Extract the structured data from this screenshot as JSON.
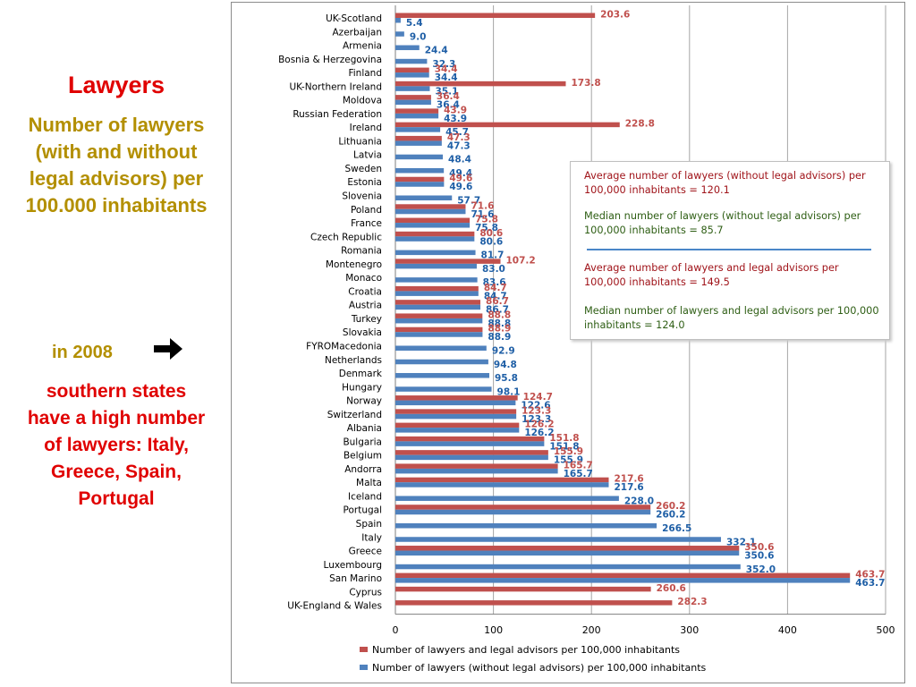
{
  "left_panel": {
    "title": "Lawyers",
    "subtitle": "Number of lawyers (with and without legal advisors) per 100.000 inhabitants",
    "year_text": "in 2008",
    "arrow_icon": "right-arrow",
    "conclusion": "southern states have a high number of lawyers: Italy, Greece, Spain, Portugal"
  },
  "notes": {
    "avg_without": "Average number of lawyers (without legal advisors) per 100,000  inhabitants = 120.1",
    "median_without": "Median number of lawyers (without legal advisors) per 100,000  inhabitants = 85.7",
    "avg_with": "Average number of lawyers and legal advisors per 100,000  inhabitants = 149.5",
    "median_with": "Median number of lawyers and legal advisors per 100,000  inhabitants = 124.0"
  },
  "colors": {
    "red": "#c0504d",
    "blue": "#4f81bd",
    "grid": "#a6a6a6",
    "red_label": "#c0504d",
    "blue_label": "#1f5fa6"
  },
  "chart_data": {
    "type": "bar",
    "orientation": "horizontal",
    "xlim": [
      0,
      500
    ],
    "xticks": [
      "0",
      "100",
      "200",
      "300",
      "400",
      "500"
    ],
    "grid": true,
    "legend_position": "bottom",
    "series": [
      {
        "name": "Number of lawyers and  legal advisors per 100,000 inhabitants",
        "color": "#c0504d"
      },
      {
        "name": "Number of lawyers (without  legal advisors)  per 100,000 inhabitants",
        "color": "#4f81bd"
      }
    ],
    "categories": [
      {
        "label": "UK-Scotland",
        "red": 203.6,
        "blue": 5.4
      },
      {
        "label": "Azerbaijan",
        "red": null,
        "blue": 9.0
      },
      {
        "label": "Armenia",
        "red": null,
        "blue": 24.4
      },
      {
        "label": "Bosnia & Herzegovina",
        "red": null,
        "blue": 32.3
      },
      {
        "label": "Finland",
        "red": 34.4,
        "blue": 34.4
      },
      {
        "label": "UK-Northern Ireland",
        "red": 173.8,
        "blue": 35.1
      },
      {
        "label": "Moldova",
        "red": 36.4,
        "blue": 36.4
      },
      {
        "label": "Russian Federation",
        "red": 43.9,
        "blue": 43.9
      },
      {
        "label": "Ireland",
        "red": 228.8,
        "blue": 45.7
      },
      {
        "label": "Lithuania",
        "red": 47.3,
        "blue": 47.3
      },
      {
        "label": "Latvia",
        "red": null,
        "blue": 48.4
      },
      {
        "label": "Sweden",
        "red": null,
        "blue": 49.4
      },
      {
        "label": "Estonia",
        "red": 49.6,
        "blue": 49.6
      },
      {
        "label": "Slovenia",
        "red": null,
        "blue": 57.7
      },
      {
        "label": "Poland",
        "red": 71.6,
        "blue": 71.6
      },
      {
        "label": "France",
        "red": 75.8,
        "blue": 75.8
      },
      {
        "label": "Czech Republic",
        "red": 80.6,
        "blue": 80.6
      },
      {
        "label": "Romania",
        "red": null,
        "blue": 81.7
      },
      {
        "label": "Montenegro",
        "red": 107.2,
        "blue": 83.0
      },
      {
        "label": "Monaco",
        "red": null,
        "blue": 83.6
      },
      {
        "label": "Croatia",
        "red": 84.7,
        "blue": 84.7
      },
      {
        "label": "Austria",
        "red": 86.7,
        "blue": 86.7
      },
      {
        "label": "Turkey",
        "red": 88.8,
        "blue": 88.8
      },
      {
        "label": "Slovakia",
        "red": 88.9,
        "blue": 88.9
      },
      {
        "label": "FYROMacedonia",
        "red": null,
        "blue": 92.9
      },
      {
        "label": "Netherlands",
        "red": null,
        "blue": 94.8
      },
      {
        "label": "Denmark",
        "red": null,
        "blue": 95.8
      },
      {
        "label": "Hungary",
        "red": null,
        "blue": 98.1
      },
      {
        "label": "Norway",
        "red": 124.7,
        "blue": 122.6
      },
      {
        "label": "Switzerland",
        "red": 123.3,
        "blue": 123.3
      },
      {
        "label": "Albania",
        "red": 126.2,
        "blue": 126.2
      },
      {
        "label": "Bulgaria",
        "red": 151.8,
        "blue": 151.8
      },
      {
        "label": "Belgium",
        "red": 155.9,
        "blue": 155.9
      },
      {
        "label": "Andorra",
        "red": 165.7,
        "blue": 165.7
      },
      {
        "label": "Malta",
        "red": 217.6,
        "blue": 217.6
      },
      {
        "label": "Iceland",
        "red": null,
        "blue": 228.0
      },
      {
        "label": "Portugal",
        "red": 260.2,
        "blue": 260.2
      },
      {
        "label": "Spain",
        "red": null,
        "blue": 266.5
      },
      {
        "label": "Italy",
        "red": null,
        "blue": 332.1
      },
      {
        "label": "Greece",
        "red": 350.6,
        "blue": 350.6
      },
      {
        "label": "Luxembourg",
        "red": null,
        "blue": 352.0
      },
      {
        "label": "San Marino",
        "red": 463.7,
        "blue": 463.7
      },
      {
        "label": "Cyprus",
        "red": 260.6,
        "blue": null
      },
      {
        "label": "UK-England & Wales",
        "red": 282.3,
        "blue": null
      }
    ]
  }
}
